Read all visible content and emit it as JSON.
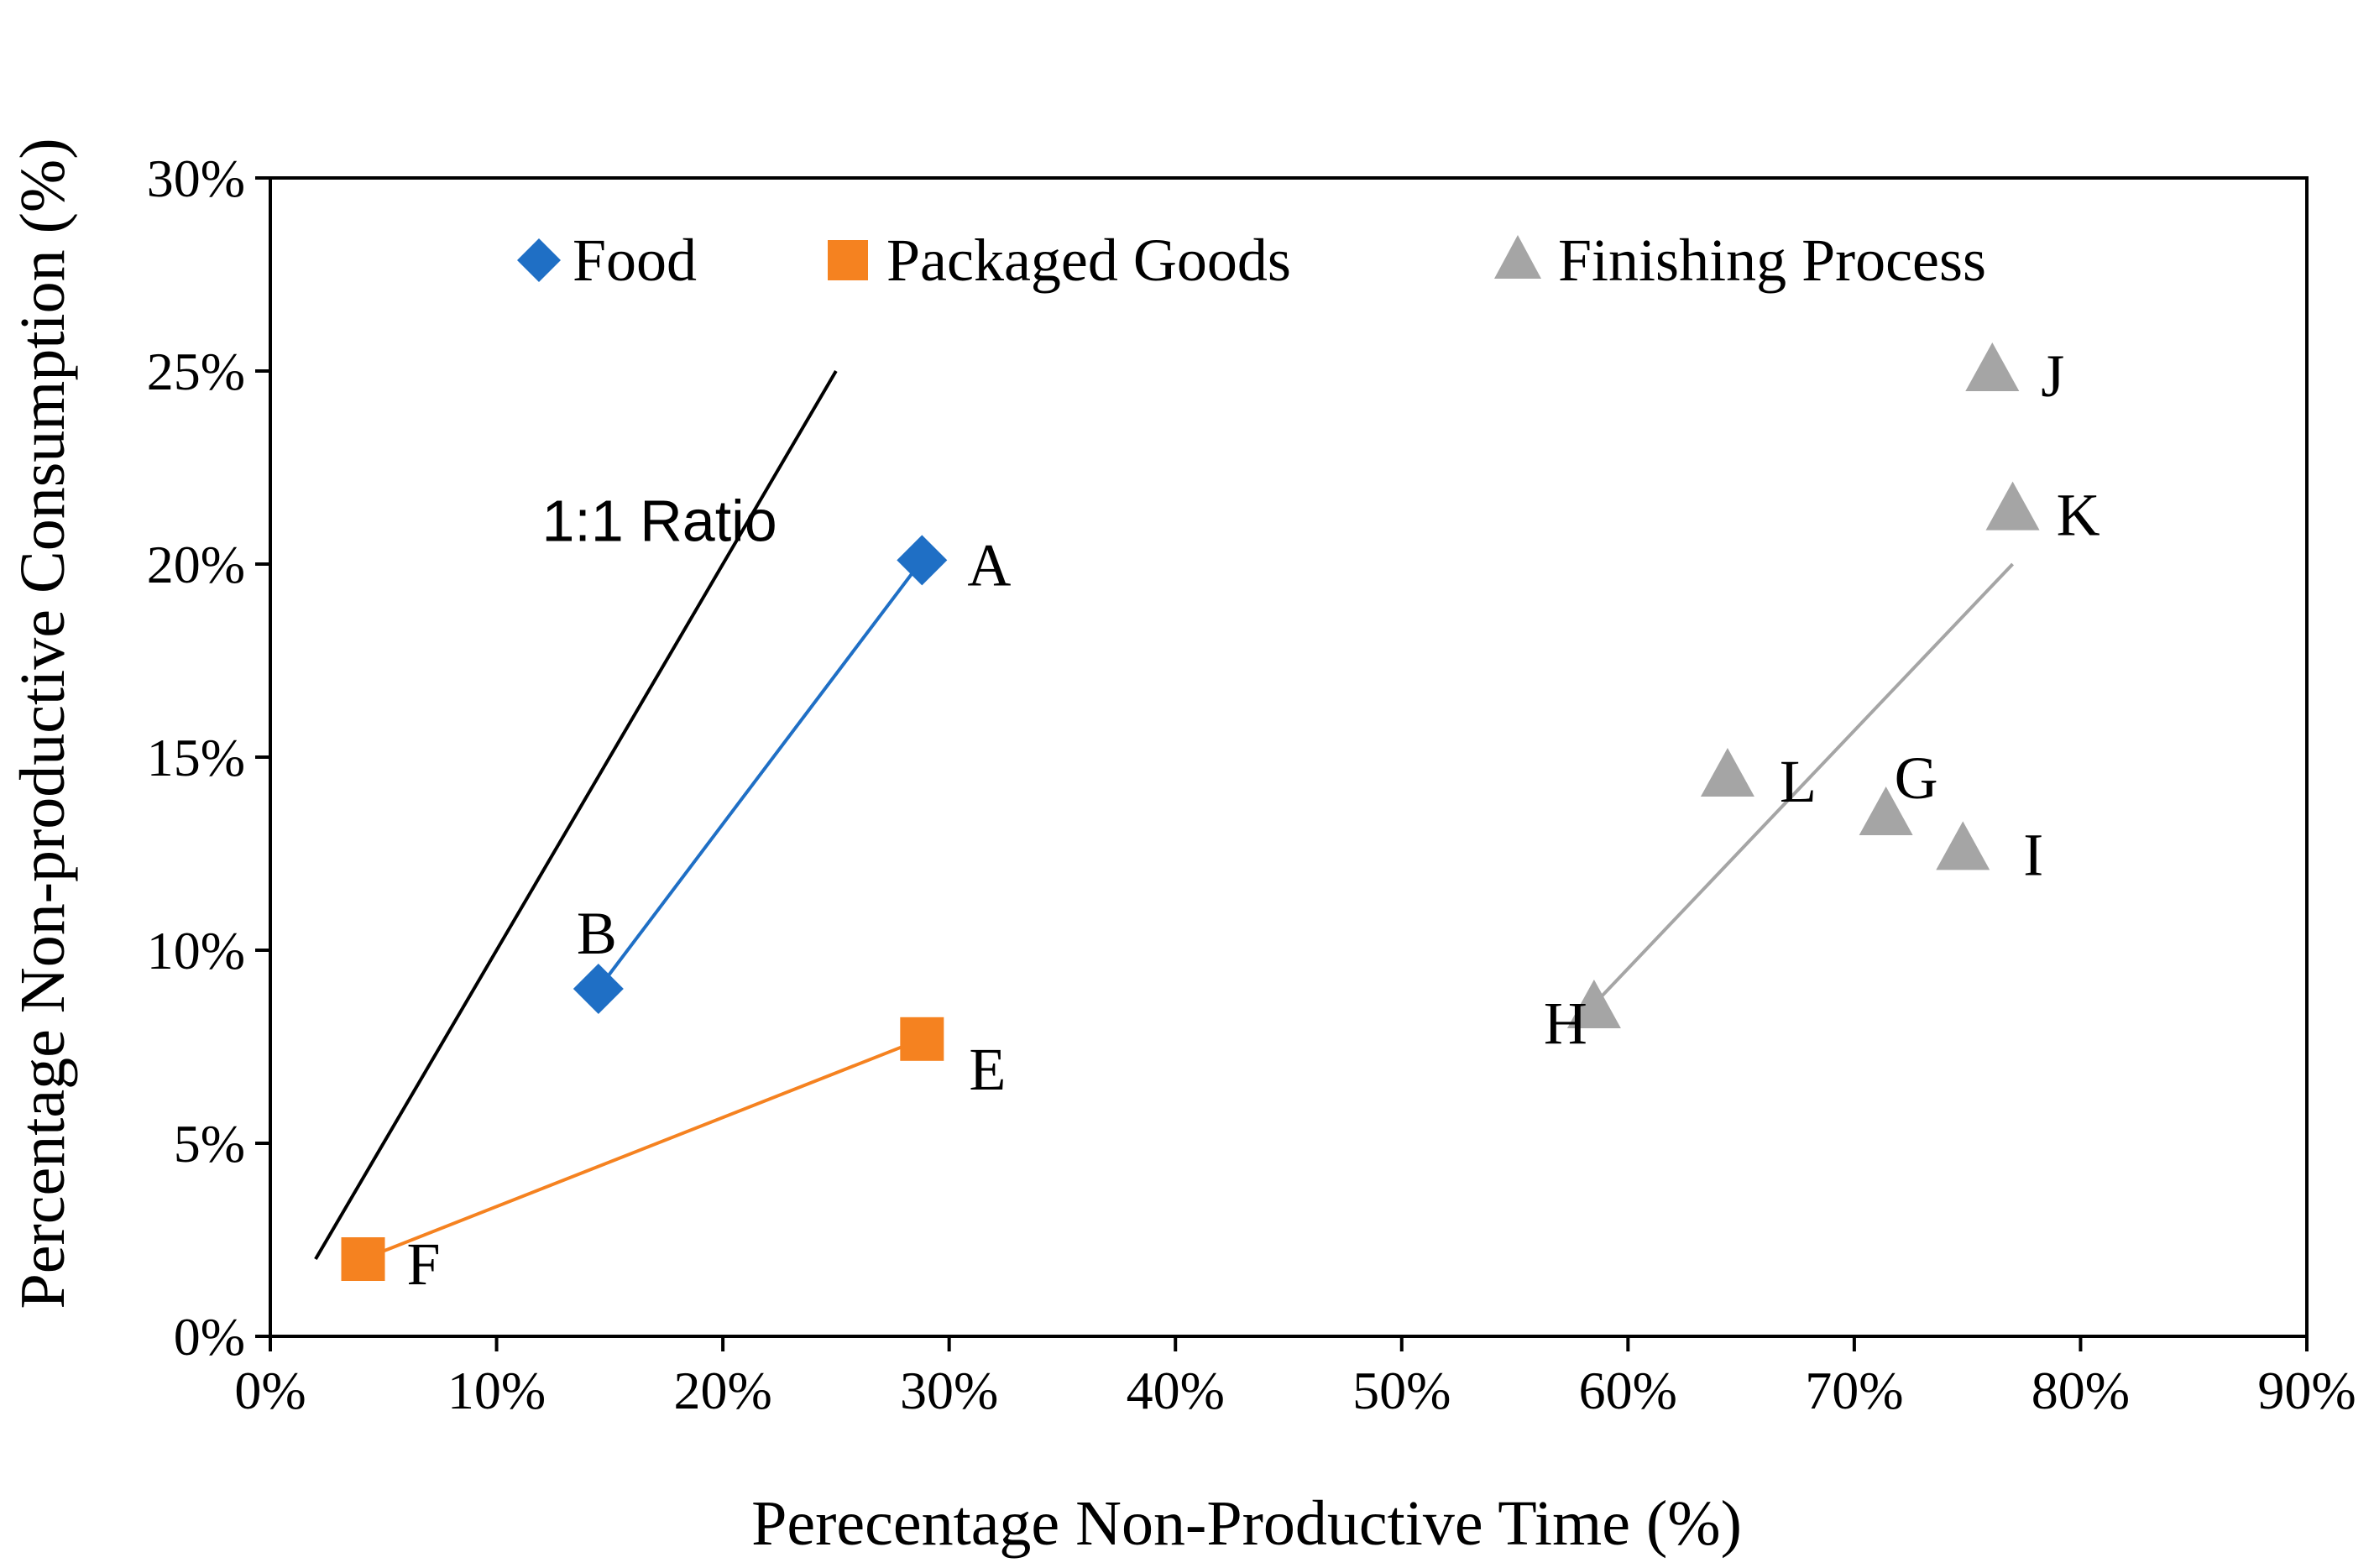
{
  "chart_data": {
    "type": "scatter",
    "title": "",
    "xlabel": "Perecentage Non-Productive Time (%)",
    "ylabel": "Percentage Non-productive Consumption (%)",
    "xlim": [
      0,
      90
    ],
    "ylim": [
      0,
      30
    ],
    "x_ticks": [
      "0%",
      "10%",
      "20%",
      "30%",
      "40%",
      "50%",
      "60%",
      "70%",
      "80%",
      "90%"
    ],
    "y_ticks": [
      "0%",
      "5%",
      "10%",
      "15%",
      "20%",
      "25%",
      "30%"
    ],
    "grid": false,
    "legend": {
      "position": "top",
      "entries": [
        "Food",
        "Packaged Goods",
        "Finishing Process"
      ]
    },
    "series": [
      {
        "name": "Food",
        "marker": "diamond",
        "color": "#1f6fc5",
        "points": [
          {
            "label": "A",
            "x": 28.8,
            "y": 20.1
          },
          {
            "label": "B",
            "x": 14.5,
            "y": 9.0
          }
        ],
        "trendline": [
          [
            14.5,
            9.0
          ],
          [
            28.8,
            20.1
          ]
        ]
      },
      {
        "name": "Packaged Goods",
        "marker": "square",
        "color": "#f58220",
        "points": [
          {
            "label": "E",
            "x": 28.8,
            "y": 7.7
          },
          {
            "label": "F",
            "x": 4.1,
            "y": 2.0
          }
        ],
        "trendline": [
          [
            4.1,
            2.0
          ],
          [
            28.8,
            7.7
          ]
        ]
      },
      {
        "name": "Finishing Process",
        "marker": "triangle",
        "color": "#a5a5a5",
        "points": [
          {
            "label": "G",
            "x": 71.4,
            "y": 13.5
          },
          {
            "label": "H",
            "x": 58.5,
            "y": 8.5
          },
          {
            "label": "I",
            "x": 74.8,
            "y": 12.6
          },
          {
            "label": "J",
            "x": 76.1,
            "y": 25.0
          },
          {
            "label": "K",
            "x": 77.0,
            "y": 21.4
          },
          {
            "label": "L",
            "x": 64.4,
            "y": 14.5
          }
        ],
        "trendline": [
          [
            58.5,
            8.6
          ],
          [
            77.0,
            20.0
          ]
        ]
      }
    ],
    "reference_line": {
      "label": "1:1 Ratio",
      "color": "#000000",
      "from": [
        2.0,
        2.0
      ],
      "to": [
        25.0,
        25.0
      ]
    }
  }
}
